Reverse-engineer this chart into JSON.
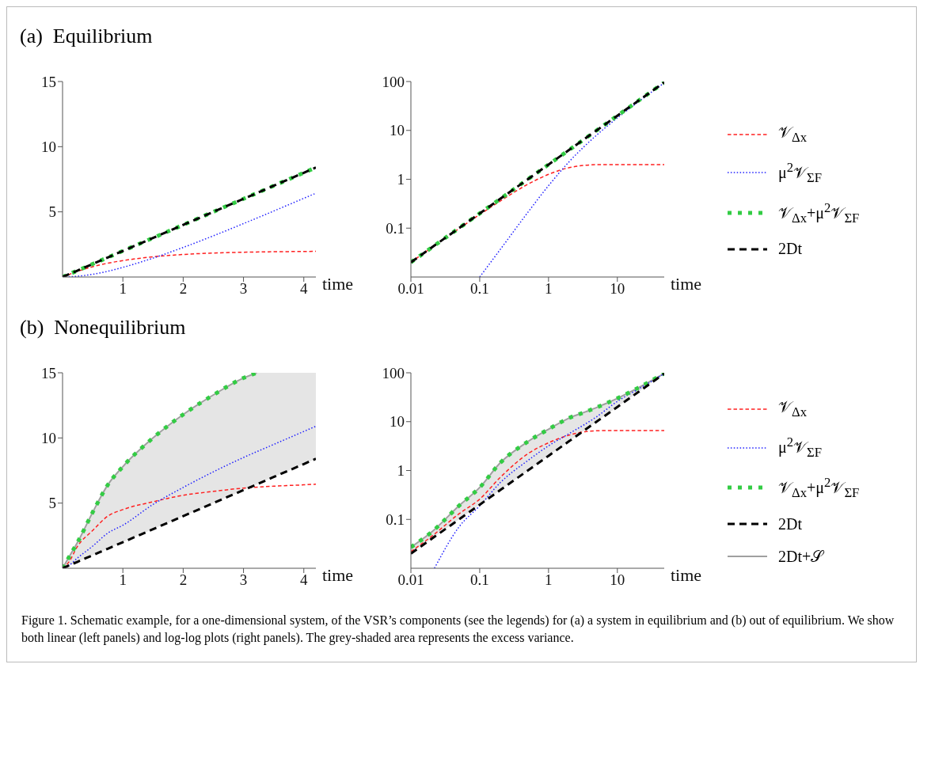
{
  "chart_data": [
    {
      "type": "line",
      "title": "(a)  Equilibrium",
      "xlabel": "time",
      "x": [
        0,
        0.25,
        0.5,
        0.75,
        1,
        1.5,
        2,
        2.5,
        3,
        3.5,
        4,
        4.2
      ],
      "xlim": [
        0,
        4.2
      ],
      "xticks": [
        1,
        2,
        3,
        4
      ],
      "ylim": [
        0,
        15
      ],
      "yticks": [
        5,
        10,
        15
      ],
      "series": [
        {
          "color": "#ff2020",
          "line_style": "dashed",
          "values": [
            0,
            0.44,
            0.79,
            1.06,
            1.26,
            1.55,
            1.73,
            1.84,
            1.9,
            1.94,
            1.96,
            1.97
          ]
        },
        {
          "color": "#2020ff",
          "line_style": "dotted",
          "values": [
            0,
            0.06,
            0.21,
            0.44,
            0.74,
            1.45,
            2.27,
            3.16,
            4.1,
            5.06,
            6.04,
            6.43
          ]
        },
        {
          "color": "#33cc44",
          "line_style": "dotted",
          "values": [
            0,
            0.5,
            1,
            1.5,
            2,
            3,
            4,
            5,
            6,
            7,
            8,
            8.4
          ]
        },
        {
          "color": "#000000",
          "line_style": "dashed",
          "values": [
            0,
            0.5,
            1,
            1.5,
            2,
            3,
            4,
            5,
            6,
            7,
            8,
            8.4
          ]
        }
      ]
    },
    {
      "type": "line",
      "xlabel": "time",
      "log": "xy",
      "x": [
        0.01,
        0.02,
        0.05,
        0.1,
        0.2,
        0.5,
        1,
        2,
        5,
        10,
        20,
        48
      ],
      "xlim": [
        0.01,
        48
      ],
      "xticks": [
        0.01,
        0.1,
        1,
        10
      ],
      "ylim": [
        0.01,
        100
      ],
      "yticks": [
        0.1,
        1,
        10,
        100
      ],
      "legend": "right",
      "series": [
        {
          "name": "𝒱$_{Δx}$",
          "color": "#ff2020",
          "line_style": "dashed",
          "values": [
            0.02,
            0.04,
            0.098,
            0.19,
            0.36,
            0.79,
            1.26,
            1.73,
            1.99,
            2,
            2,
            2
          ]
        },
        {
          "name": "μ$^{2}$𝒱$_{ΣF}$",
          "color": "#2020ff",
          "line_style": "dotted",
          "x": [
            0.1,
            0.2,
            0.5,
            1,
            2,
            5,
            10,
            20,
            48
          ],
          "values": [
            0.01,
            0.037,
            0.21,
            0.74,
            2.3,
            8,
            18,
            38,
            94
          ]
        },
        {
          "name": "𝒱$_{Δx}$+μ$^{2}$𝒱$_{ΣF}$",
          "color": "#33cc44",
          "line_style": "dotted",
          "values": [
            0.02,
            0.04,
            0.1,
            0.2,
            0.4,
            1,
            2,
            4,
            10,
            20,
            40,
            96
          ]
        },
        {
          "name": "2Dt",
          "color": "#000000",
          "line_style": "dashed",
          "values": [
            0.02,
            0.04,
            0.1,
            0.2,
            0.4,
            1,
            2,
            4,
            10,
            20,
            40,
            96
          ]
        }
      ]
    },
    {
      "type": "line",
      "title": "(b)  Nonequilibrium",
      "xlabel": "time",
      "x": [
        0,
        0.1,
        0.25,
        0.5,
        0.75,
        1,
        1.5,
        2,
        2.5,
        3,
        3.5,
        4,
        4.2
      ],
      "xlim": [
        0,
        4.2
      ],
      "xticks": [
        1,
        2,
        3,
        4
      ],
      "ylim": [
        0,
        15
      ],
      "yticks": [
        5,
        10,
        15
      ],
      "series": [
        {
          "color": "#ff2020",
          "line_style": "dashed",
          "values": [
            0,
            0.45,
            1.7,
            2.9,
            4.0,
            4.5,
            5.1,
            5.6,
            5.9,
            6.15,
            6.3,
            6.4,
            6.45
          ]
        },
        {
          "color": "#2020ff",
          "line_style": "dotted",
          "values": [
            0,
            0.2,
            0.8,
            1.7,
            2.7,
            3.3,
            4.9,
            6.2,
            7.4,
            8.5,
            9.5,
            10.5,
            10.9
          ]
        },
        {
          "color": "#33cc44",
          "line_style": "dotted",
          "x": [
            0,
            0.1,
            0.25,
            0.5,
            0.75,
            1,
            1.5,
            2,
            2.5,
            3,
            3.22
          ],
          "values": [
            0,
            0.8,
            2.0,
            4.3,
            6.4,
            7.8,
            10.0,
            11.8,
            13.3,
            14.6,
            15
          ]
        },
        {
          "color": "#000000",
          "line_style": "dashed",
          "values": [
            0,
            0.2,
            0.5,
            1,
            1.5,
            2,
            3,
            4,
            5,
            6,
            7,
            8,
            8.4
          ]
        },
        {
          "color": "#a0a0a0",
          "line_style": "solid",
          "x": [
            0,
            0.1,
            0.25,
            0.5,
            0.75,
            1,
            1.5,
            2,
            2.5,
            3,
            3.22,
            3.5,
            4,
            4.2
          ],
          "values": [
            0,
            0.8,
            2.0,
            4.3,
            6.4,
            7.8,
            10.0,
            11.8,
            13.3,
            14.6,
            15,
            null,
            null,
            null
          ],
          "lower": [
            0,
            0.2,
            0.5,
            1,
            1.5,
            2,
            3,
            4,
            5,
            6,
            6.44,
            7,
            8,
            8.4
          ],
          "upper": [
            0,
            0.8,
            2.0,
            4.3,
            6.4,
            7.8,
            10.0,
            11.8,
            13.3,
            14.6,
            15,
            15,
            15,
            15
          ]
        }
      ]
    },
    {
      "type": "line",
      "xlabel": "time",
      "log": "xy",
      "x": [
        0.01,
        0.02,
        0.05,
        0.1,
        0.2,
        0.5,
        1,
        2,
        3.5,
        5,
        10,
        20,
        48
      ],
      "xlim": [
        0.01,
        48
      ],
      "xticks": [
        0.01,
        0.1,
        1,
        10
      ],
      "ylim": [
        0.01,
        100
      ],
      "yticks": [
        0.1,
        1,
        10,
        100
      ],
      "legend": "right",
      "annotations": [
        "Figure 1. Schematic example, for a one-dimensional system, of the VSR’s components (see the legends) for (a) a system in equilibrium and (b) out of equilibrium. We show both linear (left panels) and log-log plots (right panels). The grey-shaded area represents the excess variance."
      ],
      "series": [
        {
          "name": "𝒱$_{Δx}$",
          "color": "#ff2020",
          "line_style": "dashed",
          "values": [
            0.022,
            0.045,
            0.13,
            0.26,
            0.73,
            2.2,
            3.7,
            5.3,
            6.3,
            6.5,
            6.6,
            6.6,
            6.6
          ]
        },
        {
          "name": "μ$^{2}$𝒱$_{ΣF}$",
          "color": "#2020ff",
          "line_style": "dotted",
          "x": [
            0.022,
            0.05,
            0.1,
            0.2,
            0.5,
            1,
            2,
            5,
            10,
            20,
            48
          ],
          "values": [
            0.01,
            0.07,
            0.19,
            0.57,
            1.6,
            3.2,
            5.7,
            12.6,
            26,
            46,
            96
          ]
        },
        {
          "name": "𝒱$_{Δx}$+μ$^{2}$𝒱$_{ΣF}$",
          "color": "#33cc44",
          "line_style": "dotted",
          "values": [
            0.027,
            0.055,
            0.19,
            0.45,
            1.45,
            3.9,
            7.0,
            11.9,
            16,
            19.5,
            30,
            49,
            97
          ]
        },
        {
          "name": "2Dt",
          "color": "#000000",
          "line_style": "dashed",
          "values": [
            0.02,
            0.04,
            0.1,
            0.2,
            0.4,
            1,
            2,
            4,
            7,
            10,
            20,
            40,
            96
          ]
        },
        {
          "name": "2Dt+𝒮",
          "color": "#a0a0a0",
          "line_style": "solid",
          "values": [
            0.027,
            0.055,
            0.19,
            0.45,
            1.45,
            3.9,
            7.0,
            11.9,
            16,
            19.5,
            30,
            49,
            97
          ],
          "lower": [
            0.02,
            0.04,
            0.1,
            0.2,
            0.4,
            1,
            2,
            4,
            7,
            10,
            20,
            40,
            96
          ],
          "upper": [
            0.027,
            0.055,
            0.19,
            0.45,
            1.45,
            3.9,
            7.0,
            11.9,
            16,
            19.5,
            30,
            49,
            97
          ]
        }
      ]
    }
  ]
}
